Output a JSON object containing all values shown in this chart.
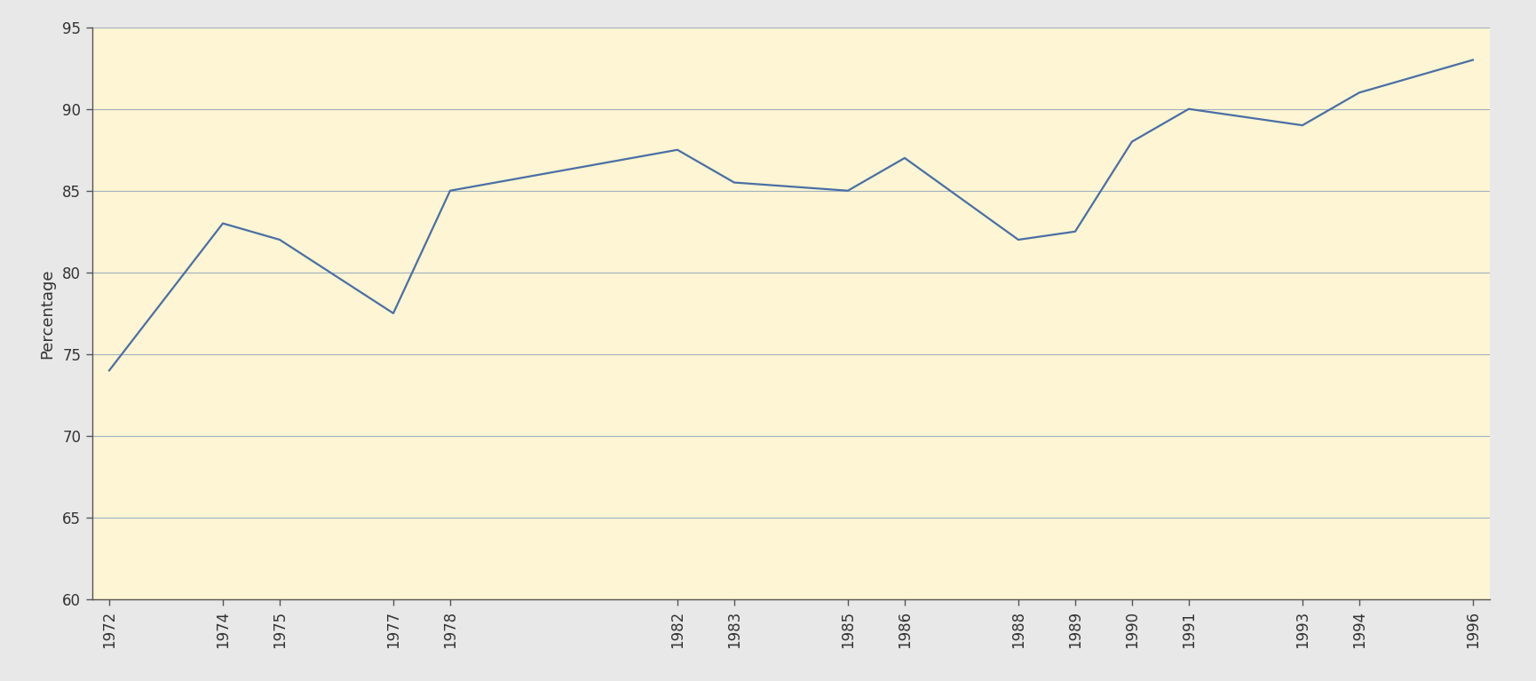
{
  "years": [
    1972,
    1974,
    1975,
    1977,
    1978,
    1982,
    1983,
    1985,
    1986,
    1988,
    1989,
    1990,
    1991,
    1993,
    1994,
    1996
  ],
  "values": [
    74,
    83,
    82,
    77.5,
    85,
    87.5,
    85.5,
    85,
    87,
    82,
    82.5,
    88,
    90,
    89,
    91,
    93
  ],
  "line_color": "#4a6fa5",
  "background_color": "#fdf5d3",
  "outer_background": "#e8e8e8",
  "grid_color": "#a0b0c0",
  "ylabel": "Percentage",
  "ylim": [
    60,
    95
  ],
  "yticks": [
    60,
    65,
    70,
    75,
    80,
    85,
    90,
    95
  ],
  "axis_label_fontsize": 13,
  "tick_fontsize": 12
}
